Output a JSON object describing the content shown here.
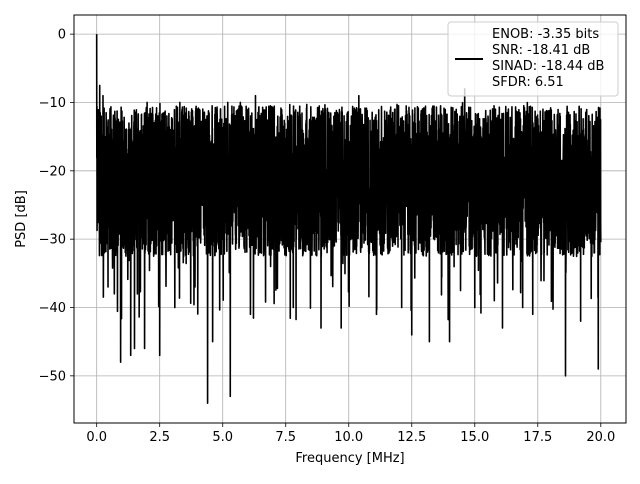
{
  "chart_data": {
    "type": "line",
    "title": "",
    "xlabel": "Frequency [MHz]",
    "ylabel": "PSD [dB]",
    "xlim": [
      -0.9,
      21.0
    ],
    "ylim": [
      -56.9,
      2.8
    ],
    "xticks": [
      0.0,
      2.5,
      5.0,
      7.5,
      10.0,
      12.5,
      15.0,
      17.5,
      20.0
    ],
    "xtick_labels": [
      "0.0",
      "2.5",
      "5.0",
      "7.5",
      "10.0",
      "12.5",
      "15.0",
      "17.5",
      "20.0"
    ],
    "yticks": [
      0,
      -10,
      -20,
      -30,
      -40,
      -50
    ],
    "ytick_labels": [
      "0",
      "−10",
      "−20",
      "−30",
      "−40",
      "−50"
    ],
    "grid": true,
    "legend_position": "top-right",
    "legend_entries": [
      "ENOB: -3.35 bits",
      "SNR: -18.41 dB",
      "SINAD: -18.44 dB",
      "SFDR: 6.51"
    ],
    "line_color": "#000000",
    "series": [
      {
        "noise_floor_mean_db": -21.5,
        "noise_floor_band_db": [
          -33,
          -12
        ],
        "peak": {
          "x": 0.0,
          "y": 0.0
        },
        "features": [
          {
            "x": 0.04,
            "y": -26
          },
          {
            "x": 0.08,
            "y": -16
          },
          {
            "x": 0.12,
            "y": -7.5
          },
          {
            "x": 0.15,
            "y": -25
          },
          {
            "x": 0.18,
            "y": -12
          },
          {
            "x": 0.2,
            "y": -28
          },
          {
            "x": 0.22,
            "y": -17
          },
          {
            "x": 0.25,
            "y": -9
          },
          {
            "x": 0.3,
            "y": -32
          },
          {
            "x": 0.35,
            "y": -15
          },
          {
            "x": 0.4,
            "y": -27
          },
          {
            "x": 0.45,
            "y": -37
          },
          {
            "x": 0.55,
            "y": -20
          },
          {
            "x": 0.7,
            "y": -38
          },
          {
            "x": 0.95,
            "y": -48
          },
          {
            "x": 1.35,
            "y": -47
          },
          {
            "x": 1.5,
            "y": -46
          },
          {
            "x": 1.9,
            "y": -46
          },
          {
            "x": 2.5,
            "y": -47
          },
          {
            "x": 3.1,
            "y": -40
          },
          {
            "x": 3.9,
            "y": -37
          },
          {
            "x": 4.4,
            "y": -54
          },
          {
            "x": 4.6,
            "y": -45
          },
          {
            "x": 5.3,
            "y": -53
          },
          {
            "x": 6.1,
            "y": -41
          },
          {
            "x": 6.9,
            "y": -34
          },
          {
            "x": 7.8,
            "y": -40
          },
          {
            "x": 8.9,
            "y": -43
          },
          {
            "x": 9.7,
            "y": -43
          },
          {
            "x": 11.1,
            "y": -41
          },
          {
            "x": 12.1,
            "y": -40
          },
          {
            "x": 12.5,
            "y": -44
          },
          {
            "x": 13.2,
            "y": -45
          },
          {
            "x": 14.0,
            "y": -45
          },
          {
            "x": 15.0,
            "y": -40
          },
          {
            "x": 16.1,
            "y": -43
          },
          {
            "x": 16.9,
            "y": -40
          },
          {
            "x": 17.3,
            "y": -41
          },
          {
            "x": 18.6,
            "y": -50
          },
          {
            "x": 19.2,
            "y": -42
          },
          {
            "x": 19.9,
            "y": -49
          },
          {
            "x": 2.0,
            "y": -10
          },
          {
            "x": 3.3,
            "y": -10
          },
          {
            "x": 5.2,
            "y": -10
          },
          {
            "x": 5.7,
            "y": -10
          },
          {
            "x": 6.3,
            "y": -9
          },
          {
            "x": 10.4,
            "y": -9
          },
          {
            "x": 14.6,
            "y": -8
          }
        ]
      }
    ]
  }
}
